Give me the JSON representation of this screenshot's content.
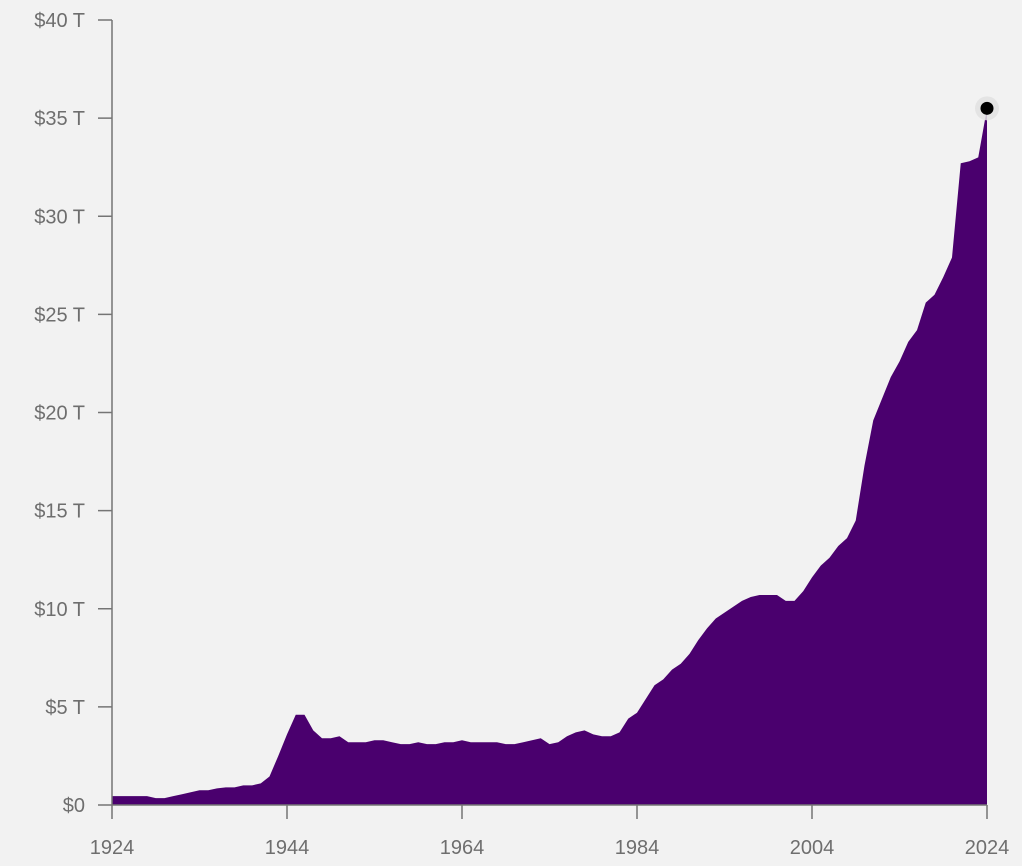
{
  "colors": {
    "background": "#f2f2f2",
    "area_fill": "#4a006e",
    "axis": "#757575",
    "tick_text": "#6e6e6e",
    "marker": "#000000",
    "marker_halo": "#e2e2e2"
  },
  "chart_data": {
    "type": "area",
    "title": "",
    "xlabel": "",
    "ylabel": "",
    "xlim": [
      1924,
      2024
    ],
    "ylim": [
      0,
      40
    ],
    "grid": false,
    "legend": "none",
    "x_ticks": [
      1924,
      1944,
      1964,
      1984,
      2004,
      2024
    ],
    "x_tick_labels": [
      "1924",
      "1944",
      "1964",
      "1984",
      "2004",
      "2024"
    ],
    "y_ticks": [
      0,
      5,
      10,
      15,
      20,
      25,
      30,
      35,
      40
    ],
    "y_tick_labels": [
      "$0",
      "$5 T",
      "$10 T",
      "$15 T",
      "$20 T",
      "$25 T",
      "$30 T",
      "$35 T",
      "$40 T"
    ],
    "highlight_point": {
      "x": 2024,
      "y": 35.5
    },
    "series": [
      {
        "x": [
          1924,
          1925,
          1926,
          1927,
          1928,
          1929,
          1930,
          1931,
          1932,
          1933,
          1934,
          1935,
          1936,
          1937,
          1938,
          1939,
          1940,
          1941,
          1942,
          1943,
          1944,
          1945,
          1946,
          1947,
          1948,
          1949,
          1950,
          1951,
          1952,
          1953,
          1954,
          1955,
          1956,
          1957,
          1958,
          1959,
          1960,
          1961,
          1962,
          1963,
          1964,
          1965,
          1966,
          1967,
          1968,
          1969,
          1970,
          1971,
          1972,
          1973,
          1974,
          1975,
          1976,
          1977,
          1978,
          1979,
          1980,
          1981,
          1982,
          1983,
          1984,
          1985,
          1986,
          1987,
          1988,
          1989,
          1990,
          1991,
          1992,
          1993,
          1994,
          1995,
          1996,
          1997,
          1998,
          1999,
          2000,
          2001,
          2002,
          2003,
          2004,
          2005,
          2006,
          2007,
          2008,
          2009,
          2010,
          2011,
          2012,
          2013,
          2014,
          2015,
          2016,
          2017,
          2018,
          2019,
          2020,
          2021,
          2022,
          2023,
          2024
        ],
        "values": [
          0.45,
          0.45,
          0.45,
          0.45,
          0.45,
          0.35,
          0.35,
          0.45,
          0.55,
          0.65,
          0.75,
          0.75,
          0.85,
          0.9,
          0.9,
          1.0,
          1.0,
          1.1,
          1.45,
          2.5,
          3.6,
          4.6,
          4.6,
          3.8,
          3.4,
          3.4,
          3.5,
          3.2,
          3.2,
          3.2,
          3.3,
          3.3,
          3.2,
          3.1,
          3.1,
          3.2,
          3.1,
          3.1,
          3.2,
          3.2,
          3.3,
          3.2,
          3.2,
          3.2,
          3.2,
          3.1,
          3.1,
          3.2,
          3.3,
          3.4,
          3.1,
          3.2,
          3.5,
          3.7,
          3.8,
          3.6,
          3.5,
          3.5,
          3.7,
          4.4,
          4.7,
          5.4,
          6.1,
          6.4,
          6.9,
          7.2,
          7.7,
          8.4,
          9.0,
          9.5,
          9.8,
          10.1,
          10.4,
          10.6,
          10.7,
          10.7,
          10.7,
          10.4,
          10.4,
          10.9,
          11.6,
          12.2,
          12.6,
          13.2,
          13.6,
          14.5,
          17.3,
          19.6,
          20.7,
          21.8,
          22.6,
          23.6,
          24.2,
          25.6,
          26.0,
          26.9,
          27.9,
          32.7,
          32.8,
          33.0,
          35.5
        ]
      }
    ]
  }
}
